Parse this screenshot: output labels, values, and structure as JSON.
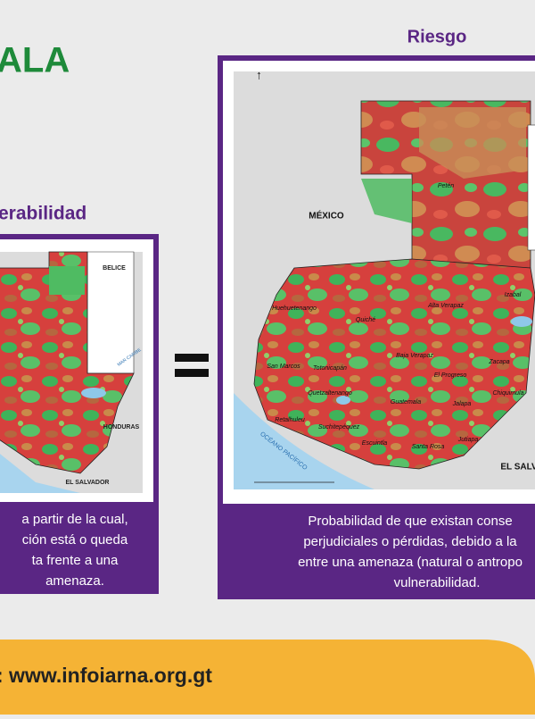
{
  "header": {
    "title_fragment": "ALA",
    "left_heading": "erabilidad",
    "right_heading": "Riesgo"
  },
  "left_map": {
    "labels": [
      "BELICE",
      "HONDURAS",
      "EL SALVADOR",
      "MAR CARIBE"
    ]
  },
  "left_text": {
    "lines": [
      "a partir de la cual,",
      "ción está o queda",
      "ta frente a una",
      "amenaza."
    ]
  },
  "right_map": {
    "labels": [
      "MÉXICO",
      "Petén",
      "Huehuetenango",
      "Quiché",
      "Alta Verapaz",
      "Baja Verapaz",
      "San Marcos",
      "Totonicapán",
      "Quetzaltenango",
      "El Progreso",
      "Zacapa",
      "Chiquimula",
      "Guatemala",
      "Jalapa",
      "Retalhuleu",
      "Suchitepéquez",
      "Escuintla",
      "Santa Rosa",
      "Jutiapa",
      "Izabal",
      "EL SALV",
      "OCÉANO PACÍFICO"
    ]
  },
  "right_text": {
    "lines": [
      "Probabilidad de que existan conse",
      "perjudiciales o pérdidas, debido a la",
      "entre una amenaza (natural o antropo",
      "vulnerabilidad."
    ]
  },
  "footer": {
    "text": ":  www.infoiarna.org.gt"
  }
}
